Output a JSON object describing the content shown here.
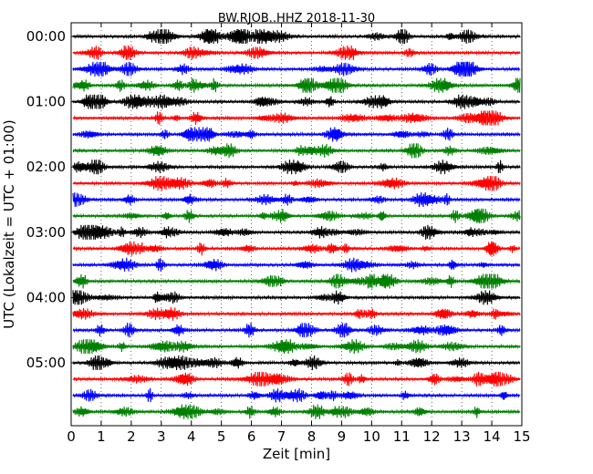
{
  "chart_data": {
    "type": "line",
    "title": "BW.RJOB..HHZ 2018-11-30",
    "xlabel": "Zeit  [min]",
    "ylabel": "UTC (Lokalzeit = UTC + 01:00)",
    "xlim": [
      0,
      15
    ],
    "x_ticks": [
      "0",
      "1",
      "2",
      "3",
      "4",
      "5",
      "6",
      "7",
      "8",
      "9",
      "10",
      "11",
      "12",
      "13",
      "14",
      "15"
    ],
    "y_tick_labels": [
      "00:00",
      "01:00",
      "02:00",
      "03:00",
      "04:00",
      "05:00"
    ],
    "trace_interval_min": 15,
    "trace_count": 24,
    "trace_colors": [
      "#000000",
      "#ff0000",
      "#0000ff",
      "#008000"
    ],
    "grid": "vertical dotted lines at each minute"
  }
}
